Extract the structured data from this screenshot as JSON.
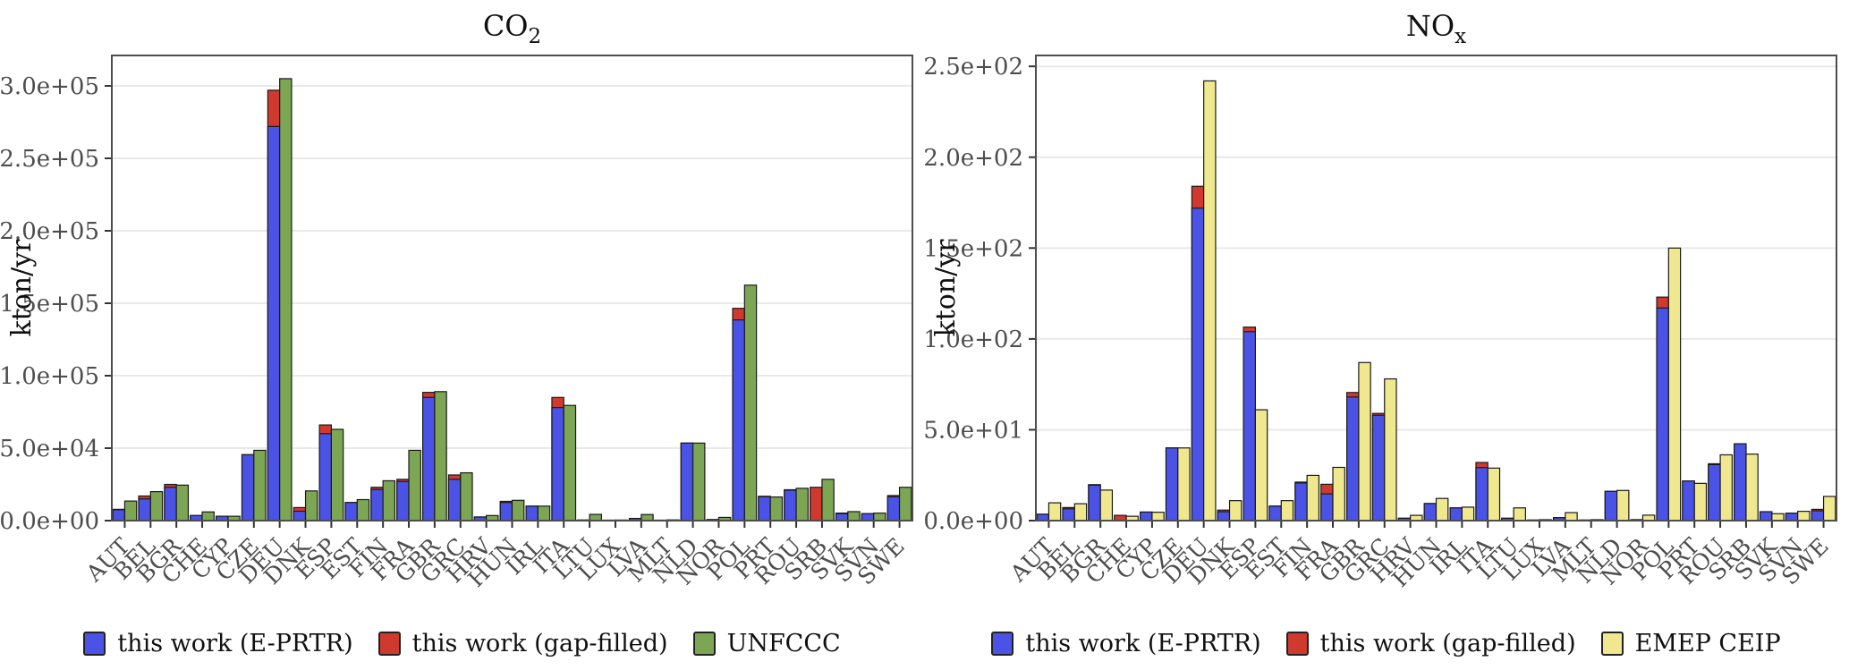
{
  "figure": {
    "background": "#ffffff",
    "grid_color": "#e9e9e9",
    "panel_border_color": "#4d4d4d",
    "bar_border_color": "#1a1a1a",
    "tick_text_color": "#4d4d4d",
    "axis_text_color": "#111111"
  },
  "chart_data": [
    {
      "type": "bar",
      "title": {
        "main": "CO",
        "sub": "2"
      },
      "ylabel": "kton/yr",
      "ylim": [
        0,
        321000
      ],
      "grid": true,
      "legend_position": "bottom",
      "bar_layout": "gap-filled totals drawn behind E-PRTR (stacked overlay); third series side-by-side",
      "yticks": {
        "values": [
          0,
          50000,
          100000,
          150000,
          200000,
          250000,
          300000
        ],
        "labels": [
          "0.0e+00",
          "5.0e+04",
          "1.0e+05",
          "1.5e+05",
          "2.0e+05",
          "2.5e+05",
          "3.0e+05"
        ]
      },
      "categories": [
        "AUT",
        "BEL",
        "BGR",
        "CHE",
        "CYP",
        "CZE",
        "DEU",
        "DNK",
        "ESP",
        "EST",
        "FIN",
        "FRA",
        "GBR",
        "GRC",
        "HRV",
        "HUN",
        "IRL",
        "ITA",
        "LTU",
        "LUX",
        "LVA",
        "MLT",
        "NLD",
        "NOR",
        "POL",
        "PRT",
        "ROU",
        "SRB",
        "SVK",
        "SVN",
        "SWE"
      ],
      "series": [
        {
          "name": "this work (E-PRTR)",
          "color": "#4b53e6",
          "values": [
            7500,
            15000,
            23000,
            3500,
            3000,
            45500,
            272000,
            6500,
            60000,
            12500,
            21500,
            27000,
            85000,
            28500,
            2500,
            12500,
            10000,
            78000,
            400,
            300,
            1500,
            300,
            53500,
            700,
            138500,
            16500,
            21000,
            0,
            4800,
            4800,
            16500
          ]
        },
        {
          "name": "this work (gap-filled)",
          "color": "#d0392e",
          "values": [
            7800,
            17000,
            25000,
            3500,
            3000,
            45500,
            297000,
            9000,
            66000,
            12500,
            23000,
            28500,
            88500,
            31500,
            2500,
            13300,
            10000,
            85000,
            400,
            300,
            1500,
            300,
            53500,
            700,
            146500,
            16800,
            21300,
            23000,
            5200,
            4800,
            17300
          ]
        },
        {
          "name": "UNFCCC",
          "color": "#7ca654",
          "values": [
            13500,
            20000,
            24500,
            6000,
            3000,
            48500,
            305000,
            20500,
            63000,
            14500,
            27500,
            48500,
            89000,
            33000,
            3500,
            14000,
            10000,
            79500,
            4300,
            400,
            4200,
            500,
            53500,
            2200,
            162500,
            16300,
            22300,
            28500,
            6200,
            5200,
            23000
          ]
        }
      ]
    },
    {
      "type": "bar",
      "title": {
        "main": "NO",
        "sub": "x"
      },
      "ylabel": "kton/yr",
      "ylim": [
        0,
        256
      ],
      "grid": true,
      "legend_position": "bottom",
      "bar_layout": "gap-filled totals drawn behind E-PRTR (stacked overlay); third series side-by-side",
      "yticks": {
        "values": [
          0,
          50,
          100,
          150,
          200,
          250
        ],
        "labels": [
          "0.0e+00",
          "5.0e+01",
          "1.0e+02",
          "1.5e+02",
          "2.0e+02",
          "2.5e+02"
        ]
      },
      "categories": [
        "AUT",
        "BEL",
        "BGR",
        "CHE",
        "CYP",
        "CZE",
        "DEU",
        "DNK",
        "ESP",
        "EST",
        "FIN",
        "FRA",
        "GBR",
        "GRC",
        "HRV",
        "HUN",
        "IRL",
        "ITA",
        "LTU",
        "LUX",
        "LVA",
        "MLT",
        "NLD",
        "NOR",
        "POL",
        "PRT",
        "ROU",
        "SRB",
        "SVK",
        "SVN",
        "SWE"
      ],
      "series": [
        {
          "name": "this work (E-PRTR)",
          "color": "#4b53e6",
          "values": [
            3.5,
            6.5,
            19.5,
            0,
            4.7,
            40,
            172,
            4.9,
            104,
            8,
            20.7,
            14.7,
            68,
            58,
            1.3,
            9.4,
            7.0,
            29.2,
            1.3,
            0.3,
            1.6,
            0.3,
            16.1,
            0.5,
            117,
            21.8,
            30.8,
            42.3,
            4.9,
            4.1,
            5.4
          ]
        },
        {
          "name": "this work (gap-filled)",
          "color": "#d0392e",
          "values": [
            3.5,
            7.2,
            19.8,
            2.9,
            4.7,
            40,
            184,
            5.8,
            106.5,
            8,
            21.2,
            20,
            70.5,
            59,
            1.3,
            9.4,
            7.0,
            32,
            1.3,
            0.3,
            1.6,
            0.3,
            16.1,
            0.5,
            123,
            21.8,
            31.3,
            42.3,
            4.9,
            4.1,
            6.2
          ]
        },
        {
          "name": "EMEP CEIP",
          "color": "#efe88f",
          "values": [
            9.8,
            9.3,
            16.8,
            2.4,
            4.6,
            40,
            242,
            11,
            61,
            11,
            24.9,
            29.3,
            87,
            78,
            2.9,
            12.2,
            7.4,
            28.9,
            7.0,
            0.5,
            4.4,
            0.5,
            16.6,
            3.0,
            150,
            20.5,
            36.2,
            36.6,
            3.8,
            5.1,
            13.3
          ]
        }
      ]
    }
  ]
}
